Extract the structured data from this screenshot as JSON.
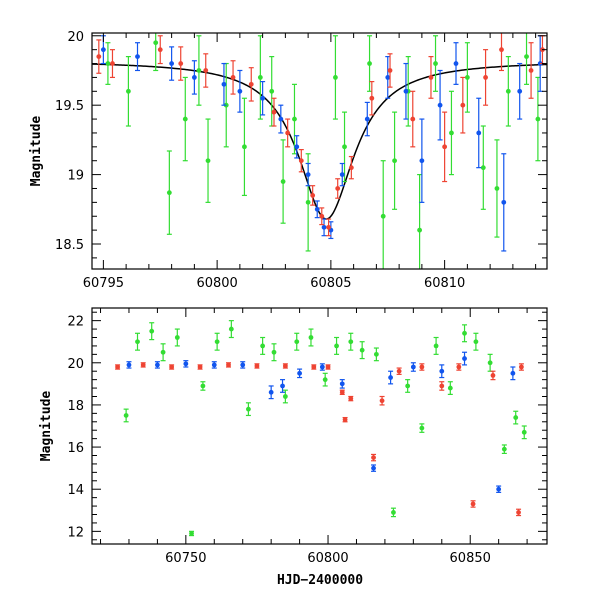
{
  "chart_data": [
    {
      "type": "scatter",
      "panel": "top",
      "xlabel": "",
      "ylabel": "Magnitude",
      "xlim": [
        60794.5,
        60814.5
      ],
      "ylim": [
        20.02,
        18.32
      ],
      "y_inverted": true,
      "xticks": [
        60795,
        60800,
        60805,
        60810
      ],
      "yticks": [
        18.5,
        19,
        19.5,
        20
      ],
      "xtick_labels": [
        "60795",
        "60800",
        "60805",
        "60810"
      ],
      "ytick_labels": [
        "18.5",
        "19",
        "19.5",
        "20"
      ],
      "model_curve": {
        "color": "#000000",
        "peak_x": 60804.8,
        "baseline": 19.82,
        "peak_mag": 18.68,
        "half_width": 1.5
      },
      "series": [
        {
          "color": "#33dd33",
          "points": [
            [
              60795.2,
              19.8,
              0.15
            ],
            [
              60796.1,
              19.6,
              0.25
            ],
            [
              60797.3,
              19.95,
              0.2
            ],
            [
              60797.9,
              18.87,
              0.3
            ],
            [
              60798.6,
              19.4,
              0.3
            ],
            [
              60799.2,
              19.75,
              0.25
            ],
            [
              60799.6,
              19.1,
              0.3
            ],
            [
              60800.4,
              19.5,
              0.3
            ],
            [
              60801.2,
              19.2,
              0.35
            ],
            [
              60801.9,
              19.7,
              0.3
            ],
            [
              60802.4,
              19.6,
              0.25
            ],
            [
              60802.9,
              18.95,
              0.3
            ],
            [
              60803.4,
              19.4,
              0.25
            ],
            [
              60804.0,
              18.8,
              0.35
            ],
            [
              60805.2,
              19.7,
              0.3
            ],
            [
              60805.6,
              19.2,
              0.25
            ],
            [
              60806.7,
              19.8,
              0.2
            ],
            [
              60807.3,
              18.7,
              0.4
            ],
            [
              60807.8,
              19.1,
              0.35
            ],
            [
              60808.4,
              19.6,
              0.25
            ],
            [
              60808.9,
              18.6,
              0.4
            ],
            [
              60809.6,
              19.8,
              0.2
            ],
            [
              60810.3,
              19.3,
              0.3
            ],
            [
              60811.0,
              19.7,
              0.25
            ],
            [
              60811.7,
              19.05,
              0.3
            ],
            [
              60812.3,
              18.9,
              0.35
            ],
            [
              60812.8,
              19.6,
              0.25
            ],
            [
              60813.6,
              19.85,
              0.2
            ],
            [
              60814.1,
              19.4,
              0.3
            ]
          ]
        },
        {
          "color": "#1155ee",
          "points": [
            [
              60795.0,
              19.9,
              0.1
            ],
            [
              60796.5,
              19.85,
              0.1
            ],
            [
              60798.0,
              19.8,
              0.12
            ],
            [
              60799.0,
              19.7,
              0.12
            ],
            [
              60800.3,
              19.65,
              0.15
            ],
            [
              60801.0,
              19.6,
              0.15
            ],
            [
              60802.0,
              19.55,
              0.12
            ],
            [
              60802.8,
              19.4,
              0.1
            ],
            [
              60803.5,
              19.2,
              0.08
            ],
            [
              60804.0,
              19.0,
              0.08
            ],
            [
              60804.4,
              18.75,
              0.06
            ],
            [
              60804.7,
              18.62,
              0.06
            ],
            [
              60805.0,
              18.6,
              0.06
            ],
            [
              60805.5,
              19.0,
              0.08
            ],
            [
              60806.6,
              19.4,
              0.12
            ],
            [
              60807.5,
              19.7,
              0.15
            ],
            [
              60808.3,
              19.6,
              0.2
            ],
            [
              60809.0,
              19.1,
              0.3
            ],
            [
              60809.8,
              19.5,
              0.25
            ],
            [
              60810.5,
              19.8,
              0.15
            ],
            [
              60811.5,
              19.3,
              0.25
            ],
            [
              60812.6,
              18.8,
              0.35
            ],
            [
              60813.3,
              19.6,
              0.2
            ],
            [
              60814.2,
              19.8,
              0.2
            ]
          ]
        },
        {
          "color": "#ee4433",
          "points": [
            [
              60794.8,
              19.85,
              0.12
            ],
            [
              60795.4,
              19.8,
              0.1
            ],
            [
              60797.5,
              19.9,
              0.1
            ],
            [
              60798.4,
              19.8,
              0.12
            ],
            [
              60799.5,
              19.75,
              0.12
            ],
            [
              60800.7,
              19.7,
              0.12
            ],
            [
              60801.5,
              19.65,
              0.12
            ],
            [
              60802.5,
              19.45,
              0.1
            ],
            [
              60803.1,
              19.3,
              0.1
            ],
            [
              60803.7,
              19.1,
              0.08
            ],
            [
              60804.2,
              18.85,
              0.07
            ],
            [
              60804.6,
              18.7,
              0.06
            ],
            [
              60804.9,
              18.62,
              0.06
            ],
            [
              60805.3,
              18.9,
              0.07
            ],
            [
              60805.9,
              19.05,
              0.08
            ],
            [
              60806.8,
              19.55,
              0.12
            ],
            [
              60807.6,
              19.75,
              0.12
            ],
            [
              60808.6,
              19.4,
              0.2
            ],
            [
              60809.4,
              19.7,
              0.15
            ],
            [
              60810.0,
              19.2,
              0.25
            ],
            [
              60810.8,
              19.5,
              0.2
            ],
            [
              60811.8,
              19.7,
              0.2
            ],
            [
              60812.5,
              19.9,
              0.15
            ],
            [
              60813.8,
              19.75,
              0.2
            ],
            [
              60814.3,
              19.9,
              0.1
            ]
          ]
        }
      ]
    },
    {
      "type": "scatter",
      "panel": "bottom",
      "xlabel": "HJD−2400000",
      "ylabel": "Magnitude",
      "xlim": [
        60717,
        60877
      ],
      "ylim": [
        22.6,
        11.4
      ],
      "y_inverted": true,
      "xticks": [
        60750,
        60800,
        60850
      ],
      "yticks": [
        12,
        14,
        16,
        18,
        20,
        22
      ],
      "xtick_labels": [
        "60750",
        "60800",
        "60850"
      ],
      "ytick_labels": [
        "12",
        "14",
        "16",
        "18",
        "20",
        "22"
      ],
      "series": [
        {
          "color": "#33dd33",
          "points": [
            [
              60729,
              17.5,
              0.3
            ],
            [
              60733,
              21.0,
              0.4
            ],
            [
              60738,
              21.5,
              0.4
            ],
            [
              60742,
              20.5,
              0.4
            ],
            [
              60747,
              21.2,
              0.4
            ],
            [
              60752,
              11.9,
              0.1
            ],
            [
              60756,
              18.9,
              0.2
            ],
            [
              60761,
              21.0,
              0.4
            ],
            [
              60766,
              21.6,
              0.4
            ],
            [
              60772,
              17.8,
              0.3
            ],
            [
              60777,
              20.8,
              0.4
            ],
            [
              60781,
              20.5,
              0.4
            ],
            [
              60785,
              18.4,
              0.3
            ],
            [
              60789,
              21.0,
              0.4
            ],
            [
              60794,
              21.2,
              0.4
            ],
            [
              60799,
              19.2,
              0.3
            ],
            [
              60803,
              20.8,
              0.4
            ],
            [
              60808,
              21.0,
              0.4
            ],
            [
              60812,
              20.6,
              0.4
            ],
            [
              60817,
              20.4,
              0.3
            ],
            [
              60823,
              12.9,
              0.2
            ],
            [
              60828,
              18.9,
              0.3
            ],
            [
              60833,
              16.9,
              0.2
            ],
            [
              60838,
              20.8,
              0.4
            ],
            [
              60843,
              18.8,
              0.3
            ],
            [
              60848,
              21.4,
              0.4
            ],
            [
              60852,
              21.0,
              0.4
            ],
            [
              60857,
              20.0,
              0.4
            ],
            [
              60862,
              15.9,
              0.2
            ],
            [
              60866,
              17.4,
              0.3
            ],
            [
              60869,
              16.7,
              0.3
            ]
          ]
        },
        {
          "color": "#1155ee",
          "points": [
            [
              60730,
              19.9,
              0.15
            ],
            [
              60740,
              19.9,
              0.15
            ],
            [
              60750,
              19.95,
              0.15
            ],
            [
              60760,
              19.9,
              0.15
            ],
            [
              60770,
              19.9,
              0.15
            ],
            [
              60780,
              18.6,
              0.3
            ],
            [
              60784,
              18.9,
              0.3
            ],
            [
              60790,
              19.5,
              0.2
            ],
            [
              60798,
              19.8,
              0.15
            ],
            [
              60805,
              19.0,
              0.2
            ],
            [
              60816,
              15.0,
              0.15
            ],
            [
              60822,
              19.3,
              0.3
            ],
            [
              60830,
              19.8,
              0.2
            ],
            [
              60840,
              19.6,
              0.3
            ],
            [
              60848,
              20.2,
              0.3
            ],
            [
              60860,
              14.0,
              0.15
            ],
            [
              60865,
              19.5,
              0.3
            ]
          ]
        },
        {
          "color": "#ee4433",
          "points": [
            [
              60726,
              19.8,
              0.1
            ],
            [
              60735,
              19.9,
              0.1
            ],
            [
              60745,
              19.8,
              0.1
            ],
            [
              60755,
              19.8,
              0.1
            ],
            [
              60765,
              19.9,
              0.1
            ],
            [
              60775,
              19.85,
              0.1
            ],
            [
              60785,
              19.85,
              0.1
            ],
            [
              60795,
              19.8,
              0.1
            ],
            [
              60800,
              19.8,
              0.1
            ],
            [
              60805,
              18.6,
              0.1
            ],
            [
              60806,
              17.3,
              0.1
            ],
            [
              60808,
              18.3,
              0.1
            ],
            [
              60816,
              15.5,
              0.15
            ],
            [
              60819,
              18.2,
              0.2
            ],
            [
              60825,
              19.6,
              0.15
            ],
            [
              60833,
              19.8,
              0.15
            ],
            [
              60840,
              18.9,
              0.2
            ],
            [
              60846,
              19.8,
              0.15
            ],
            [
              60851,
              13.3,
              0.15
            ],
            [
              60858,
              19.4,
              0.2
            ],
            [
              60867,
              12.9,
              0.15
            ],
            [
              60868,
              19.8,
              0.15
            ]
          ]
        }
      ]
    }
  ]
}
